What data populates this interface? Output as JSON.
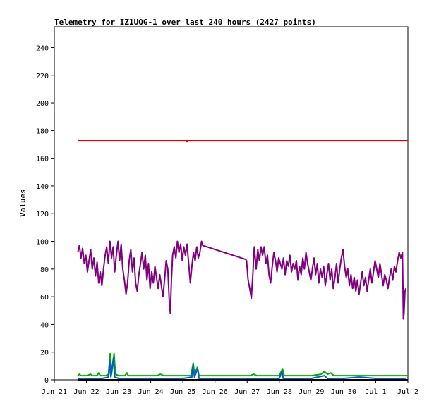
{
  "chart_data": {
    "type": "line",
    "title": "Telemetry for IZ1UQG-1 over last 240 hours (2427 points)",
    "xlabel": "",
    "ylabel": "Values",
    "ylim": [
      0,
      255
    ],
    "y_ticks": [
      0,
      20,
      40,
      60,
      80,
      100,
      120,
      140,
      160,
      180,
      200,
      220,
      240
    ],
    "x_unit": "days since Jun 21 00:00",
    "xlim": [
      0,
      11
    ],
    "x_ticks": [
      {
        "label": "Jun 21",
        "day": 0
      },
      {
        "label": "Jun 22",
        "day": 1
      },
      {
        "label": "Jun 23",
        "day": 2
      },
      {
        "label": "Jun 24",
        "day": 3
      },
      {
        "label": "Jun 25",
        "day": 4
      },
      {
        "label": "Jun 26",
        "day": 5
      },
      {
        "label": "Jun 27",
        "day": 6
      },
      {
        "label": "Jun 28",
        "day": 7
      },
      {
        "label": "Jun 29",
        "day": 8
      },
      {
        "label": "Jun 30",
        "day": 9
      },
      {
        "label": "Jul 1",
        "day": 10
      },
      {
        "label": "Jul 2",
        "day": 11
      }
    ],
    "grid": false,
    "legend": "none",
    "series": [
      {
        "color": "#e00000",
        "points": [
          [
            0.73,
            173
          ],
          [
            4.12,
            173
          ],
          [
            4.13,
            172
          ],
          [
            4.14,
            173
          ],
          [
            11.0,
            173
          ]
        ]
      },
      {
        "color": "#800080",
        "points": [
          [
            0.73,
            92
          ],
          [
            0.78,
            97
          ],
          [
            0.83,
            88
          ],
          [
            0.88,
            95
          ],
          [
            0.93,
            84
          ],
          [
            0.98,
            90
          ],
          [
            1.03,
            78
          ],
          [
            1.08,
            86
          ],
          [
            1.13,
            94
          ],
          [
            1.18,
            80
          ],
          [
            1.23,
            88
          ],
          [
            1.28,
            75
          ],
          [
            1.33,
            85
          ],
          [
            1.38,
            70
          ],
          [
            1.43,
            78
          ],
          [
            1.48,
            68
          ],
          [
            1.53,
            80
          ],
          [
            1.58,
            90
          ],
          [
            1.63,
            96
          ],
          [
            1.68,
            84
          ],
          [
            1.73,
            100
          ],
          [
            1.78,
            88
          ],
          [
            1.83,
            96
          ],
          [
            1.88,
            78
          ],
          [
            1.93,
            90
          ],
          [
            1.98,
            100
          ],
          [
            2.03,
            86
          ],
          [
            2.08,
            98
          ],
          [
            2.13,
            80
          ],
          [
            2.18,
            72
          ],
          [
            2.23,
            62
          ],
          [
            2.28,
            70
          ],
          [
            2.33,
            86
          ],
          [
            2.38,
            94
          ],
          [
            2.43,
            78
          ],
          [
            2.48,
            88
          ],
          [
            2.53,
            70
          ],
          [
            2.58,
            64
          ],
          [
            2.63,
            76
          ],
          [
            2.68,
            84
          ],
          [
            2.73,
            92
          ],
          [
            2.78,
            80
          ],
          [
            2.83,
            90
          ],
          [
            2.88,
            72
          ],
          [
            2.93,
            84
          ],
          [
            2.98,
            66
          ],
          [
            3.03,
            78
          ],
          [
            3.08,
            70
          ],
          [
            3.13,
            82
          ],
          [
            3.18,
            74
          ],
          [
            3.23,
            66
          ],
          [
            3.28,
            76
          ],
          [
            3.33,
            68
          ],
          [
            3.38,
            60
          ],
          [
            3.43,
            72
          ],
          [
            3.48,
            86
          ],
          [
            3.53,
            80
          ],
          [
            3.58,
            55
          ],
          [
            3.61,
            48
          ],
          [
            3.64,
            70
          ],
          [
            3.68,
            90
          ],
          [
            3.73,
            96
          ],
          [
            3.78,
            88
          ],
          [
            3.83,
            100
          ],
          [
            3.88,
            92
          ],
          [
            3.93,
            98
          ],
          [
            3.98,
            86
          ],
          [
            4.03,
            96
          ],
          [
            4.08,
            90
          ],
          [
            4.13,
            98
          ],
          [
            4.18,
            84
          ],
          [
            4.23,
            70
          ],
          [
            4.28,
            82
          ],
          [
            4.33,
            92
          ],
          [
            4.38,
            86
          ],
          [
            4.43,
            96
          ],
          [
            4.48,
            88
          ],
          [
            4.53,
            92
          ],
          [
            4.58,
            100
          ],
          [
            4.62,
            97
          ],
          [
            5.95,
            87
          ],
          [
            5.98,
            86
          ],
          [
            6.03,
            72
          ],
          [
            6.08,
            66
          ],
          [
            6.13,
            59
          ],
          [
            6.18,
            78
          ],
          [
            6.22,
            96
          ],
          [
            6.28,
            80
          ],
          [
            6.33,
            94
          ],
          [
            6.38,
            86
          ],
          [
            6.43,
            96
          ],
          [
            6.48,
            90
          ],
          [
            6.53,
            96
          ],
          [
            6.58,
            84
          ],
          [
            6.63,
            90
          ],
          [
            6.68,
            76
          ],
          [
            6.73,
            70
          ],
          [
            6.78,
            82
          ],
          [
            6.83,
            92
          ],
          [
            6.88,
            86
          ],
          [
            6.93,
            78
          ],
          [
            6.98,
            88
          ],
          [
            7.03,
            84
          ],
          [
            7.08,
            80
          ],
          [
            7.13,
            88
          ],
          [
            7.18,
            76
          ],
          [
            7.23,
            86
          ],
          [
            7.28,
            82
          ],
          [
            7.33,
            90
          ],
          [
            7.38,
            78
          ],
          [
            7.43,
            84
          ],
          [
            7.48,
            80
          ],
          [
            7.53,
            86
          ],
          [
            7.58,
            72
          ],
          [
            7.63,
            82
          ],
          [
            7.68,
            76
          ],
          [
            7.73,
            88
          ],
          [
            7.78,
            80
          ],
          [
            7.83,
            92
          ],
          [
            7.88,
            84
          ],
          [
            7.93,
            78
          ],
          [
            7.98,
            72
          ],
          [
            8.03,
            80
          ],
          [
            8.08,
            88
          ],
          [
            8.13,
            76
          ],
          [
            8.18,
            84
          ],
          [
            8.23,
            70
          ],
          [
            8.28,
            80
          ],
          [
            8.33,
            74
          ],
          [
            8.38,
            82
          ],
          [
            8.43,
            68
          ],
          [
            8.48,
            76
          ],
          [
            8.53,
            84
          ],
          [
            8.58,
            72
          ],
          [
            8.63,
            80
          ],
          [
            8.68,
            66
          ],
          [
            8.73,
            74
          ],
          [
            8.78,
            84
          ],
          [
            8.83,
            70
          ],
          [
            8.88,
            80
          ],
          [
            8.93,
            88
          ],
          [
            8.98,
            94
          ],
          [
            9.03,
            82
          ],
          [
            9.08,
            74
          ],
          [
            9.13,
            80
          ],
          [
            9.18,
            68
          ],
          [
            9.23,
            76
          ],
          [
            9.28,
            66
          ],
          [
            9.33,
            74
          ],
          [
            9.38,
            64
          ],
          [
            9.43,
            72
          ],
          [
            9.48,
            62
          ],
          [
            9.53,
            70
          ],
          [
            9.58,
            78
          ],
          [
            9.63,
            68
          ],
          [
            9.68,
            74
          ],
          [
            9.73,
            64
          ],
          [
            9.78,
            72
          ],
          [
            9.83,
            80
          ],
          [
            9.88,
            70
          ],
          [
            9.93,
            78
          ],
          [
            9.98,
            86
          ],
          [
            10.03,
            80
          ],
          [
            10.08,
            74
          ],
          [
            10.13,
            84
          ],
          [
            10.18,
            76
          ],
          [
            10.23,
            68
          ],
          [
            10.28,
            76
          ],
          [
            10.33,
            72
          ],
          [
            10.38,
            66
          ],
          [
            10.43,
            74
          ],
          [
            10.48,
            80
          ],
          [
            10.53,
            72
          ],
          [
            10.58,
            82
          ],
          [
            10.63,
            78
          ],
          [
            10.68,
            86
          ],
          [
            10.73,
            92
          ],
          [
            10.78,
            88
          ],
          [
            10.83,
            92
          ],
          [
            10.86,
            44
          ],
          [
            10.88,
            48
          ],
          [
            10.91,
            64
          ],
          [
            10.94,
            66
          ]
        ]
      },
      {
        "color": "#00aa00",
        "points": [
          [
            0.73,
            3
          ],
          [
            0.78,
            4
          ],
          [
            0.83,
            3
          ],
          [
            0.88,
            3
          ],
          [
            1.0,
            3
          ],
          [
            1.13,
            4
          ],
          [
            1.18,
            3
          ],
          [
            1.33,
            3
          ],
          [
            1.38,
            5
          ],
          [
            1.43,
            3
          ],
          [
            1.6,
            3
          ],
          [
            1.7,
            4
          ],
          [
            1.74,
            19
          ],
          [
            1.78,
            4
          ],
          [
            1.86,
            19
          ],
          [
            1.9,
            4
          ],
          [
            2.0,
            3
          ],
          [
            2.2,
            3
          ],
          [
            2.26,
            5
          ],
          [
            2.3,
            3
          ],
          [
            2.5,
            3
          ],
          [
            3.0,
            3
          ],
          [
            3.2,
            3
          ],
          [
            3.3,
            4
          ],
          [
            3.4,
            3
          ],
          [
            4.0,
            3
          ],
          [
            4.25,
            3
          ],
          [
            4.32,
            12
          ],
          [
            4.36,
            4
          ],
          [
            4.45,
            9
          ],
          [
            4.5,
            3
          ],
          [
            5.0,
            3
          ],
          [
            6.0,
            3
          ],
          [
            6.1,
            3
          ],
          [
            6.2,
            4
          ],
          [
            6.3,
            3
          ],
          [
            7.0,
            3
          ],
          [
            7.1,
            8
          ],
          [
            7.15,
            3
          ],
          [
            7.5,
            3
          ],
          [
            8.0,
            3
          ],
          [
            8.3,
            4
          ],
          [
            8.4,
            6
          ],
          [
            8.5,
            4
          ],
          [
            8.6,
            5
          ],
          [
            8.7,
            3
          ],
          [
            9.0,
            3
          ],
          [
            9.5,
            3
          ],
          [
            10.0,
            3
          ],
          [
            10.5,
            3
          ],
          [
            11.0,
            3
          ]
        ]
      },
      {
        "color": "#0060c0",
        "points": [
          [
            0.73,
            1
          ],
          [
            1.0,
            1
          ],
          [
            1.5,
            1
          ],
          [
            1.68,
            2
          ],
          [
            1.72,
            14
          ],
          [
            1.76,
            2
          ],
          [
            1.84,
            16
          ],
          [
            1.88,
            2
          ],
          [
            2.0,
            1
          ],
          [
            2.5,
            1
          ],
          [
            3.0,
            1
          ],
          [
            3.5,
            1
          ],
          [
            4.0,
            1
          ],
          [
            4.28,
            2
          ],
          [
            4.32,
            10
          ],
          [
            4.36,
            2
          ],
          [
            4.46,
            8
          ],
          [
            4.5,
            1
          ],
          [
            5.0,
            1
          ],
          [
            6.0,
            1
          ],
          [
            6.5,
            1
          ],
          [
            7.0,
            1
          ],
          [
            7.08,
            6
          ],
          [
            7.12,
            1
          ],
          [
            7.5,
            1
          ],
          [
            8.0,
            1
          ],
          [
            8.4,
            3
          ],
          [
            8.5,
            1
          ],
          [
            9.0,
            1
          ],
          [
            9.5,
            2
          ],
          [
            10.0,
            1
          ],
          [
            10.5,
            1
          ],
          [
            10.94,
            1
          ]
        ]
      },
      {
        "color": "#000000",
        "points": [
          [
            0.73,
            0
          ],
          [
            11.0,
            0
          ]
        ]
      }
    ]
  }
}
